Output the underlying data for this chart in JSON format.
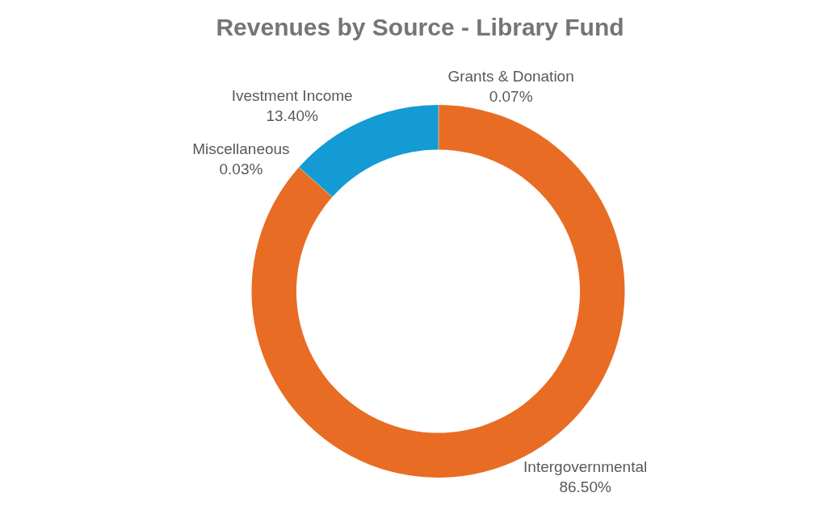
{
  "chart_data": {
    "type": "donut",
    "title": "Revenues by Source - Library Fund",
    "categories": [
      "Grants & Donation",
      "Intergovernmental",
      "Miscellaneous",
      "Ivestment Income"
    ],
    "values": [
      0.07,
      86.5,
      0.03,
      13.4
    ],
    "value_labels": [
      "0.07%",
      "86.50%",
      "0.03%",
      "13.40%"
    ],
    "colors": [
      "#7f7f7f",
      "#e96c24",
      "#ffc000",
      "#149bd4"
    ],
    "legend": false
  }
}
